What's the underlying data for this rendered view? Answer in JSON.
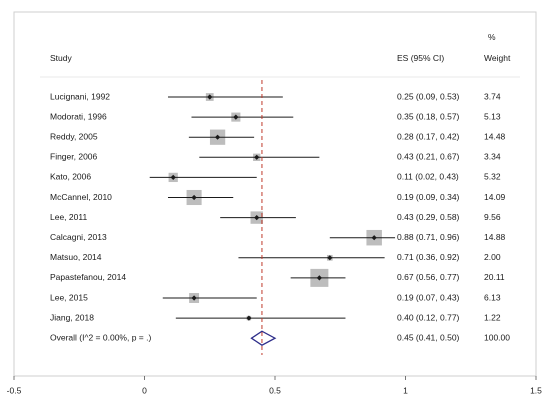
{
  "chart_data": {
    "type": "forest",
    "headers": {
      "study": "Study",
      "es": "ES (95% CI)",
      "weight_top": "%",
      "weight": "Weight"
    },
    "rows": [
      {
        "study": "Lucignani, 1992",
        "es": 0.25,
        "lo": 0.09,
        "hi": 0.53,
        "label": "0.25 (0.09, 0.53)",
        "weight": 3.74,
        "weight_label": "3.74"
      },
      {
        "study": "Modorati, 1996",
        "es": 0.35,
        "lo": 0.18,
        "hi": 0.57,
        "label": "0.35 (0.18, 0.57)",
        "weight": 5.13,
        "weight_label": "5.13"
      },
      {
        "study": "Reddy, 2005",
        "es": 0.28,
        "lo": 0.17,
        "hi": 0.42,
        "label": "0.28 (0.17, 0.42)",
        "weight": 14.48,
        "weight_label": "14.48"
      },
      {
        "study": "Finger, 2006",
        "es": 0.43,
        "lo": 0.21,
        "hi": 0.67,
        "label": "0.43 (0.21, 0.67)",
        "weight": 3.34,
        "weight_label": "3.34"
      },
      {
        "study": "Kato, 2006",
        "es": 0.11,
        "lo": 0.02,
        "hi": 0.43,
        "label": "0.11 (0.02, 0.43)",
        "weight": 5.32,
        "weight_label": "5.32"
      },
      {
        "study": "McCannel, 2010",
        "es": 0.19,
        "lo": 0.09,
        "hi": 0.34,
        "label": "0.19 (0.09, 0.34)",
        "weight": 14.09,
        "weight_label": "14.09"
      },
      {
        "study": "Lee, 2011",
        "es": 0.43,
        "lo": 0.29,
        "hi": 0.58,
        "label": "0.43 (0.29, 0.58)",
        "weight": 9.56,
        "weight_label": "9.56"
      },
      {
        "study": "Calcagni, 2013",
        "es": 0.88,
        "lo": 0.71,
        "hi": 0.96,
        "label": "0.88 (0.71, 0.96)",
        "weight": 14.88,
        "weight_label": "14.88"
      },
      {
        "study": "Matsuo, 2014",
        "es": 0.71,
        "lo": 0.36,
        "hi": 0.92,
        "label": "0.71 (0.36, 0.92)",
        "weight": 2.0,
        "weight_label": "2.00"
      },
      {
        "study": "Papastefanou, 2014",
        "es": 0.67,
        "lo": 0.56,
        "hi": 0.77,
        "label": "0.67 (0.56, 0.77)",
        "weight": 20.11,
        "weight_label": "20.11"
      },
      {
        "study": "Lee, 2015",
        "es": 0.19,
        "lo": 0.07,
        "hi": 0.43,
        "label": "0.19 (0.07, 0.43)",
        "weight": 6.13,
        "weight_label": "6.13"
      },
      {
        "study": "Jiang, 2018",
        "es": 0.4,
        "lo": 0.12,
        "hi": 0.77,
        "label": "0.40 (0.12, 0.77)",
        "weight": 1.22,
        "weight_label": "1.22"
      }
    ],
    "overall": {
      "study": "Overall  (I^2 = 0.00%, p = .)",
      "es": 0.45,
      "lo": 0.41,
      "hi": 0.5,
      "label": "0.45 (0.41, 0.50)",
      "weight_label": "100.00"
    },
    "reference_line": 0.45,
    "x_ticks": [
      {
        "value": -0.5,
        "label": "-0.5"
      },
      {
        "value": 0,
        "label": "0"
      },
      {
        "value": 0.5,
        "label": "0.5"
      },
      {
        "value": 1,
        "label": "1"
      },
      {
        "value": 1.5,
        "label": "1.5"
      }
    ],
    "xlim": [
      -0.5,
      1.5
    ],
    "colors": {
      "box": "#bdbdbd",
      "line": "#1a1a1a",
      "reference": "#c0392b",
      "diamond": "#2e2e8a",
      "frame": "#cfcfcf"
    }
  }
}
